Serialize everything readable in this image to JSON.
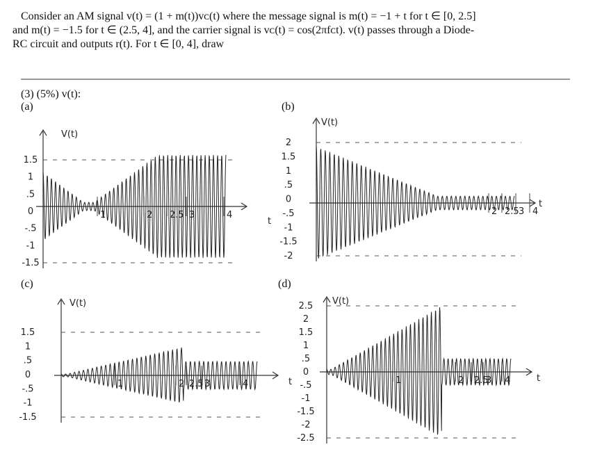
{
  "header": {
    "statement": [
      "Consider an AM signal v(t) = (1 + m(t))vᴄ(t) where the message signal is m(t) = −1 + t for t ∈ [0, 2.5]",
      "and m(t) = −1.5 for t ∈ (2.5, 4], and the carrier signal is vᴄ(t) = cos(2πfᴄt). v(t) passes through a Diode-",
      "RC circuit and outputs r(t).  For t ∈ [0, 4], draw"
    ]
  },
  "question": "(3) (5%) v(t):",
  "panels": [
    {
      "label": "(a)",
      "y_axis_label": "V(t)",
      "y_ticks": [
        "1.5",
        "1",
        ".5",
        "0",
        "-.5",
        "-1",
        "-1.5"
      ],
      "x_ticks": [
        "1",
        "2",
        "2.5",
        "3",
        "4"
      ],
      "t_labels": []
    },
    {
      "label": "(b)",
      "y_axis_label": "V(t)",
      "y_ticks": [
        "2",
        "1.5",
        "1",
        ".5",
        "0",
        "-.5",
        "-1",
        "-1.5",
        "-2"
      ],
      "x_ticks": [
        "2",
        "2.5",
        "3",
        "4"
      ],
      "t_labels": [
        "t",
        "t"
      ]
    },
    {
      "label": "(c)",
      "y_axis_label": "V(t)",
      "y_ticks": [
        "1.5",
        "1",
        ".5",
        "0",
        "-.5",
        "-1",
        "-1.5"
      ],
      "x_ticks": [
        "1",
        "2",
        "2.5",
        "3",
        "4"
      ],
      "t_labels": []
    },
    {
      "label": "(d)",
      "y_axis_label": "V(t)",
      "y_ticks": [
        "2.5",
        "2",
        "1.5",
        "1",
        ".5",
        "0",
        "-.5",
        "-1",
        "-1.5",
        "-2",
        "-2.5"
      ],
      "x_ticks": [
        "1",
        "2",
        "2.5",
        "3",
        "4"
      ],
      "t_labels": [
        "t",
        "t"
      ]
    }
  ]
}
